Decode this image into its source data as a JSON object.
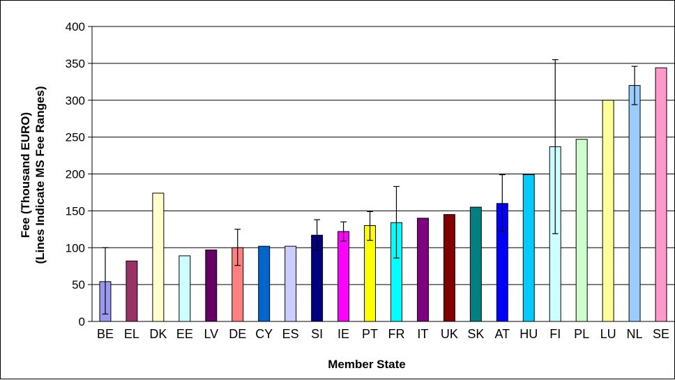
{
  "chart_data": {
    "type": "bar",
    "title": "",
    "xlabel": "Member State",
    "ylabel_lines": [
      "Fee (Thousand EURO)",
      "(Lines Indicate MS Fee Ranges)"
    ],
    "ylim": [
      0,
      400
    ],
    "yticks": [
      0,
      50,
      100,
      150,
      200,
      250,
      300,
      350,
      400
    ],
    "grid": "horizontal",
    "legend": "none",
    "categories": [
      "BE",
      "EL",
      "DK",
      "EE",
      "LV",
      "DE",
      "CY",
      "ES",
      "SI",
      "IE",
      "PT",
      "FR",
      "IT",
      "UK",
      "SK",
      "AT",
      "HU",
      "FI",
      "PL",
      "LU",
      "NL",
      "SE"
    ],
    "values": [
      54,
      82,
      174,
      89,
      97,
      100,
      102,
      102,
      117,
      122,
      130,
      134,
      140,
      145,
      155,
      160,
      199,
      237,
      247,
      300,
      320,
      344
    ],
    "range_low": [
      10,
      null,
      null,
      null,
      null,
      76,
      null,
      null,
      96,
      109,
      110,
      86,
      null,
      null,
      null,
      122,
      null,
      119,
      null,
      null,
      294,
      null
    ],
    "range_high": [
      100,
      null,
      null,
      null,
      null,
      125,
      null,
      null,
      138,
      135,
      149,
      183,
      null,
      null,
      null,
      199,
      null,
      355,
      null,
      null,
      346,
      null
    ],
    "colors": [
      "#9999ee",
      "#993366",
      "#ffffcc",
      "#ccffff",
      "#660066",
      "#ff8080",
      "#0066cc",
      "#ccccff",
      "#000080",
      "#ff00ff",
      "#ffff00",
      "#00ffff",
      "#800080",
      "#800000",
      "#008080",
      "#0000ff",
      "#00ccff",
      "#ccffff",
      "#ccffcc",
      "#ffff99",
      "#99ccff",
      "#ff99cc"
    ]
  }
}
